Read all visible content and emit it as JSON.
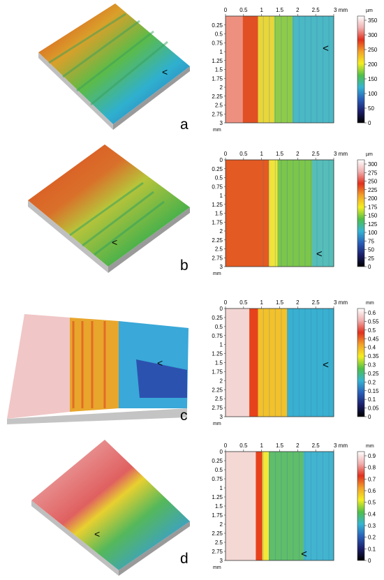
{
  "panels": [
    {
      "letter": "a",
      "axis_unit": "mm",
      "x_ticks": [
        "0",
        "0.5",
        "1",
        "1.5",
        "2",
        "2.5",
        "3 mm"
      ],
      "y_ticks": [
        "0.25",
        "0.5",
        "0.75",
        "1",
        "1.25",
        "1.5",
        "1.75",
        "2",
        "2.25",
        "2.5",
        "2.75",
        "3"
      ],
      "colorbar_unit": "µm",
      "colorbar_ticks": [
        "350",
        "300",
        "250",
        "200",
        "150",
        "100",
        "50",
        "0"
      ],
      "marker": "<"
    },
    {
      "letter": "b",
      "axis_unit": "mm",
      "x_ticks": [
        "0",
        "0.5",
        "1",
        "1.5",
        "2",
        "2.5",
        "3 mm"
      ],
      "y_ticks": [
        "0",
        "0.25",
        "0.5",
        "0.75",
        "1",
        "1.25",
        "1.5",
        "1.75",
        "2",
        "2.25",
        "2.5",
        "2.75",
        "3"
      ],
      "colorbar_unit": "µm",
      "colorbar_ticks": [
        "300",
        "275",
        "250",
        "225",
        "200",
        "175",
        "150",
        "125",
        "100",
        "75",
        "50",
        "25",
        "0"
      ],
      "marker": "<"
    },
    {
      "letter": "c",
      "axis_unit": "mm",
      "x_ticks": [
        "0",
        "0.5",
        "1",
        "1.5",
        "2",
        "2.5",
        "3 mm"
      ],
      "y_ticks": [
        "0",
        "0.25",
        "0.5",
        "0.75",
        "1",
        "1.25",
        "1.5",
        "1.75",
        "2",
        "2.25",
        "2.5",
        "2.75",
        "3"
      ],
      "colorbar_unit": "mm",
      "colorbar_ticks": [
        "0.6",
        "0.55",
        "0.5",
        "0.45",
        "0.4",
        "0.35",
        "0.3",
        "0.25",
        "0.2",
        "0.15",
        "0.1",
        "0.05",
        "0"
      ],
      "marker": "<"
    },
    {
      "letter": "d",
      "axis_unit": "mm",
      "x_ticks": [
        "0",
        "0.5",
        "1",
        "1.5",
        "2",
        "2.5",
        "3 mm"
      ],
      "y_ticks": [
        "0",
        "0.25",
        "0.5",
        "0.75",
        "1",
        "1.25",
        "1.5",
        "1.75",
        "2",
        "2.25",
        "2.5",
        "2.75",
        "3"
      ],
      "colorbar_unit": "mm",
      "colorbar_ticks": [
        "0.9",
        "0.8",
        "0.7",
        "0.6",
        "0.5",
        "0.4",
        "0.3",
        "0.2",
        "0.1",
        "0"
      ],
      "marker": "<"
    }
  ],
  "colors": {
    "colormap": [
      "#ffffff",
      "#e9a3a8",
      "#e0301e",
      "#f2a22a",
      "#f4ee23",
      "#4fbf4a",
      "#36b4d2",
      "#2a5fb8",
      "#1c1f6b",
      "#000000"
    ],
    "background": "#ffffff"
  }
}
